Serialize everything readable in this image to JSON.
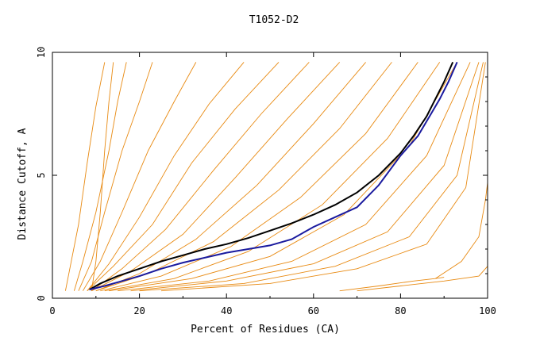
{
  "chart_data": {
    "type": "line",
    "title": "T1052-D2",
    "xlabel": "Percent of Residues (CA)",
    "ylabel": "Distance Cutoff, A",
    "xlim": [
      0,
      100
    ],
    "ylim": [
      0,
      10
    ],
    "x_ticks": [
      0,
      20,
      40,
      60,
      80,
      100
    ],
    "y_ticks": [
      0,
      5,
      10
    ],
    "grid": false,
    "legend": "none",
    "colors": {
      "background_models": "#e88a12",
      "black_model": "#000000",
      "blue_model": "#1a1a9e"
    },
    "highlight_series": [
      {
        "color": "#000000",
        "x": [
          8.5,
          11,
          15,
          20,
          25,
          30,
          35,
          40,
          45,
          50,
          55,
          60,
          65,
          70,
          75,
          80,
          83,
          86,
          88,
          90,
          92
        ],
        "y": [
          0.35,
          0.6,
          0.9,
          1.2,
          1.5,
          1.75,
          2.0,
          2.2,
          2.45,
          2.75,
          3.05,
          3.4,
          3.8,
          4.3,
          5.0,
          5.9,
          6.6,
          7.4,
          8.1,
          8.8,
          9.6
        ]
      },
      {
        "color": "#1a1a9e",
        "x": [
          8.5,
          12,
          16,
          20,
          25,
          30,
          35,
          40,
          45,
          50,
          55,
          60,
          65,
          70,
          75,
          80,
          84,
          87,
          89,
          91,
          93
        ],
        "y": [
          0.35,
          0.5,
          0.7,
          0.9,
          1.2,
          1.45,
          1.65,
          1.85,
          2.0,
          2.15,
          2.4,
          2.9,
          3.3,
          3.7,
          4.6,
          5.8,
          6.6,
          7.5,
          8.1,
          8.8,
          9.6
        ]
      }
    ],
    "background_series": [
      {
        "x": [
          9,
          10,
          11,
          12,
          13,
          14
        ],
        "y": [
          0.3,
          1.5,
          3.5,
          6.0,
          8.0,
          9.6
        ]
      },
      {
        "x": [
          3,
          4,
          6,
          8,
          10,
          12
        ],
        "y": [
          0.3,
          1.2,
          3.0,
          5.5,
          7.8,
          9.6
        ]
      },
      {
        "x": [
          5,
          7,
          10,
          13,
          15,
          17
        ],
        "y": [
          0.3,
          1.5,
          3.5,
          6.0,
          8.0,
          9.6
        ]
      },
      {
        "x": [
          6,
          9,
          12,
          16,
          20,
          23
        ],
        "y": [
          0.3,
          1.5,
          3.5,
          6.0,
          8.0,
          9.6
        ]
      },
      {
        "x": [
          7,
          11,
          16,
          22,
          28,
          33
        ],
        "y": [
          0.3,
          1.5,
          3.5,
          6.0,
          8.0,
          9.6
        ]
      },
      {
        "x": [
          8,
          13,
          20,
          28,
          36,
          44
        ],
        "y": [
          0.3,
          1.4,
          3.3,
          5.8,
          7.9,
          9.6
        ]
      },
      {
        "x": [
          8,
          14,
          23,
          32,
          42,
          52
        ],
        "y": [
          0.3,
          1.3,
          3.0,
          5.5,
          7.7,
          9.6
        ]
      },
      {
        "x": [
          9,
          16,
          26,
          37,
          48,
          59
        ],
        "y": [
          0.3,
          1.2,
          2.8,
          5.2,
          7.5,
          9.6
        ]
      },
      {
        "x": [
          9,
          18,
          30,
          42,
          54,
          66
        ],
        "y": [
          0.3,
          1.1,
          2.6,
          4.9,
          7.3,
          9.6
        ]
      },
      {
        "x": [
          10,
          20,
          33,
          47,
          60,
          72
        ],
        "y": [
          0.3,
          1.0,
          2.4,
          4.6,
          7.1,
          9.6
        ]
      },
      {
        "x": [
          10,
          22,
          37,
          52,
          66,
          78
        ],
        "y": [
          0.3,
          1.0,
          2.3,
          4.4,
          6.9,
          9.6
        ]
      },
      {
        "x": [
          11,
          25,
          41,
          57,
          72,
          84
        ],
        "y": [
          0.3,
          0.9,
          2.1,
          4.1,
          6.7,
          9.6
        ]
      },
      {
        "x": [
          12,
          28,
          45,
          62,
          77,
          89
        ],
        "y": [
          0.3,
          0.8,
          1.9,
          3.8,
          6.5,
          9.6
        ]
      },
      {
        "x": [
          13,
          32,
          50,
          67,
          82,
          93
        ],
        "y": [
          0.3,
          0.8,
          1.7,
          3.4,
          6.2,
          9.6
        ]
      },
      {
        "x": [
          15,
          36,
          55,
          72,
          86,
          96
        ],
        "y": [
          0.3,
          0.7,
          1.5,
          3.0,
          5.8,
          9.6
        ]
      },
      {
        "x": [
          18,
          40,
          60,
          77,
          90,
          98
        ],
        "y": [
          0.3,
          0.7,
          1.4,
          2.7,
          5.4,
          9.6
        ]
      },
      {
        "x": [
          20,
          44,
          65,
          82,
          93,
          99
        ],
        "y": [
          0.3,
          0.6,
          1.3,
          2.5,
          5.0,
          9.6
        ]
      },
      {
        "x": [
          25,
          50,
          70,
          86,
          95,
          99.5
        ],
        "y": [
          0.3,
          0.6,
          1.2,
          2.2,
          4.5,
          9.6
        ]
      },
      {
        "x": [
          66,
          75,
          83,
          88,
          90
        ],
        "y": [
          0.3,
          0.5,
          0.7,
          0.8,
          0.85
        ]
      },
      {
        "x": [
          70,
          80,
          90,
          98,
          100
        ],
        "y": [
          0.3,
          0.5,
          0.7,
          0.9,
          1.3
        ]
      },
      {
        "x": [
          88,
          94,
          98,
          99.5,
          100
        ],
        "y": [
          0.8,
          1.5,
          2.5,
          4.0,
          4.7
        ]
      }
    ]
  }
}
